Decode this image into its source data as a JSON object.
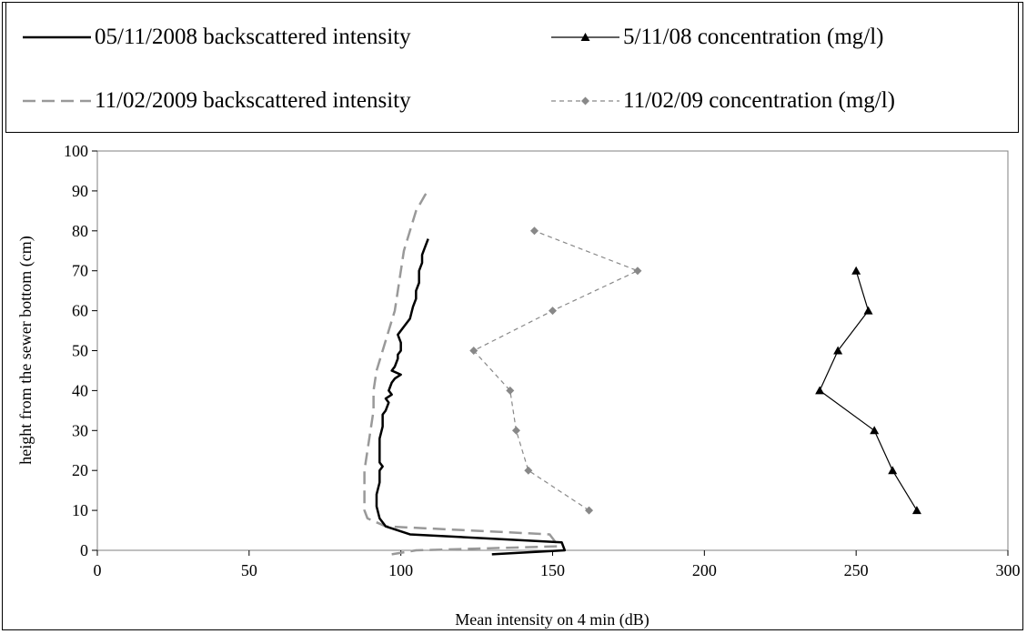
{
  "chart_data": {
    "type": "line",
    "title": "",
    "xlabel": "Mean intensity on 4 min (dB)",
    "ylabel": "height from the sewer bottom (cm)",
    "xlim": [
      0,
      300
    ],
    "ylim": [
      0,
      100
    ],
    "x_ticks": [
      "0",
      "50",
      "100",
      "150",
      "200",
      "250",
      "300"
    ],
    "y_ticks": [
      "0",
      "10",
      "20",
      "30",
      "40",
      "50",
      "60",
      "70",
      "80",
      "90",
      "100"
    ],
    "grid": false,
    "legend_position": "top",
    "series": [
      {
        "name": "05/11/2008 backscattered intensity",
        "style": "solid-black",
        "color": "#000000",
        "points": [
          [
            130,
            -1
          ],
          [
            154,
            0
          ],
          [
            153,
            2
          ],
          [
            103,
            4
          ],
          [
            95,
            6
          ],
          [
            93,
            8
          ],
          [
            92,
            11
          ],
          [
            92,
            14
          ],
          [
            93,
            17
          ],
          [
            93,
            20
          ],
          [
            94,
            21
          ],
          [
            93,
            22
          ],
          [
            93,
            25
          ],
          [
            93,
            28
          ],
          [
            94,
            31
          ],
          [
            94,
            34
          ],
          [
            95,
            35
          ],
          [
            96,
            37
          ],
          [
            95,
            38
          ],
          [
            97,
            39
          ],
          [
            96,
            40
          ],
          [
            97,
            42
          ],
          [
            98,
            43
          ],
          [
            100,
            44
          ],
          [
            97,
            45
          ],
          [
            98,
            46
          ],
          [
            99,
            48
          ],
          [
            99,
            49
          ],
          [
            100,
            50
          ],
          [
            100,
            52
          ],
          [
            99,
            54
          ],
          [
            101,
            56
          ],
          [
            103,
            58
          ],
          [
            104,
            61
          ],
          [
            105,
            63
          ],
          [
            105,
            65
          ],
          [
            106,
            67
          ],
          [
            106,
            70
          ],
          [
            107,
            72
          ],
          [
            107,
            74
          ],
          [
            108,
            76
          ],
          [
            109,
            78
          ]
        ]
      },
      {
        "name": "11/02/2009 backscattered intensity",
        "style": "dashed-gray",
        "color": "#999999",
        "points": [
          [
            97,
            -1
          ],
          [
            105,
            0
          ],
          [
            152,
            1
          ],
          [
            149,
            4
          ],
          [
            95,
            6
          ],
          [
            89,
            8
          ],
          [
            88,
            10
          ],
          [
            88,
            15
          ],
          [
            88,
            20
          ],
          [
            89,
            25
          ],
          [
            90,
            30
          ],
          [
            91,
            35
          ],
          [
            91,
            40
          ],
          [
            92,
            45
          ],
          [
            94,
            50
          ],
          [
            96,
            55
          ],
          [
            98,
            60
          ],
          [
            99,
            65
          ],
          [
            100,
            70
          ],
          [
            101,
            75
          ],
          [
            103,
            80
          ],
          [
            105,
            85
          ],
          [
            108,
            89
          ],
          [
            109,
            90
          ]
        ]
      },
      {
        "name": "5/11/08 concentration (mg/l)",
        "style": "solid-black-triangle",
        "color": "#000000",
        "points": [
          [
            270,
            10
          ],
          [
            262,
            20
          ],
          [
            256,
            30
          ],
          [
            238,
            40
          ],
          [
            244,
            50
          ],
          [
            254,
            60
          ],
          [
            250,
            70
          ]
        ]
      },
      {
        "name": "11/02/09 concentration (mg/l)",
        "style": "dashed-gray-diamond",
        "color": "#888888",
        "points": [
          [
            162,
            10
          ],
          [
            142,
            20
          ],
          [
            138,
            30
          ],
          [
            136,
            40
          ],
          [
            124,
            50
          ],
          [
            150,
            60
          ],
          [
            178,
            70
          ],
          [
            144,
            80
          ]
        ]
      }
    ]
  }
}
